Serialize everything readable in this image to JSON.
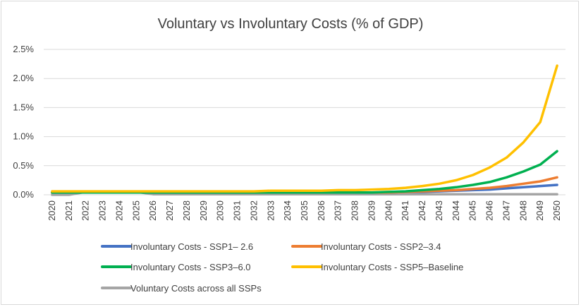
{
  "chart_data": {
    "type": "line",
    "title": "Voluntary vs Involuntary Costs (% of GDP)",
    "xlabel": "",
    "ylabel": "",
    "ylim": [
      0,
      0.025
    ],
    "y_ticks": [
      {
        "value": 0.0,
        "label": "0.0%"
      },
      {
        "value": 0.005,
        "label": "0.5%"
      },
      {
        "value": 0.01,
        "label": "1.0%"
      },
      {
        "value": 0.015,
        "label": "1.5%"
      },
      {
        "value": 0.02,
        "label": "2.0%"
      },
      {
        "value": 0.025,
        "label": "2.5%"
      }
    ],
    "grid": true,
    "legend_position": "bottom",
    "x": [
      "2020",
      "2021",
      "2022",
      "2023",
      "2024",
      "2025",
      "2026",
      "2027",
      "2028",
      "2029",
      "2030",
      "2031",
      "2032",
      "2033",
      "2034",
      "2035",
      "2036",
      "2037",
      "2038",
      "2039",
      "2040",
      "2041",
      "2042",
      "2043",
      "2044",
      "2045",
      "2046",
      "2047",
      "2048",
      "2049",
      "2050"
    ],
    "series": [
      {
        "name": "Involuntary Costs - SSP1– 2.6",
        "color": "#4472c4",
        "values": [
          0.0004,
          0.0004,
          0.0004,
          0.0004,
          0.0004,
          0.0004,
          0.0004,
          0.0004,
          0.0004,
          0.0004,
          0.0004,
          0.0004,
          0.0004,
          0.0004,
          0.0004,
          0.0004,
          0.0004,
          0.0004,
          0.0004,
          0.0004,
          0.0004,
          0.0005,
          0.0005,
          0.0006,
          0.0007,
          0.0008,
          0.0009,
          0.0011,
          0.0013,
          0.0015,
          0.0017
        ]
      },
      {
        "name": "Involuntary Costs - SSP2–3.4",
        "color": "#ed7d31",
        "values": [
          0.0004,
          0.0004,
          0.0004,
          0.0004,
          0.0004,
          0.0004,
          0.0004,
          0.0004,
          0.0004,
          0.0004,
          0.0004,
          0.0004,
          0.0004,
          0.0004,
          0.0004,
          0.0004,
          0.0004,
          0.0004,
          0.0004,
          0.0004,
          0.0004,
          0.0005,
          0.0006,
          0.0007,
          0.0008,
          0.001,
          0.0012,
          0.0015,
          0.0019,
          0.0023,
          0.003
        ]
      },
      {
        "name": "Involuntary Costs - SSP3–6.0",
        "color": "#00b050",
        "values": [
          0.0004,
          0.0004,
          0.0004,
          0.0004,
          0.0004,
          0.0004,
          0.0004,
          0.0004,
          0.0004,
          0.0004,
          0.0004,
          0.0004,
          0.0004,
          0.0004,
          0.0004,
          0.0004,
          0.0004,
          0.0004,
          0.0004,
          0.0004,
          0.0005,
          0.0006,
          0.0008,
          0.001,
          0.0013,
          0.0017,
          0.0022,
          0.003,
          0.004,
          0.0052,
          0.0075
        ]
      },
      {
        "name": "Involuntary Costs - SSP5–Baseline",
        "color": "#ffc000",
        "values": [
          0.0006,
          0.0006,
          0.0006,
          0.0006,
          0.0006,
          0.0006,
          0.0006,
          0.0006,
          0.0006,
          0.0006,
          0.0006,
          0.0006,
          0.0006,
          0.0007,
          0.0007,
          0.0007,
          0.0007,
          0.0008,
          0.0008,
          0.0009,
          0.001,
          0.0012,
          0.0015,
          0.0019,
          0.0025,
          0.0034,
          0.0047,
          0.0064,
          0.009,
          0.0125,
          0.0222
        ]
      },
      {
        "name": "Voluntary Costs across all SSPs",
        "color": "#a5a5a5",
        "values": [
          0.0,
          0.0,
          0.0005,
          0.0005,
          0.0005,
          0.0005,
          0.0001,
          0.0001,
          0.0001,
          0.0001,
          0.0001,
          0.0001,
          0.0001,
          0.0001,
          0.0001,
          0.0001,
          0.0001,
          0.0001,
          0.0001,
          0.0001,
          0.0001,
          0.0001,
          0.0001,
          0.0001,
          0.0001,
          0.0001,
          0.0001,
          0.0001,
          0.0001,
          0.0001,
          0.0001
        ]
      }
    ]
  }
}
